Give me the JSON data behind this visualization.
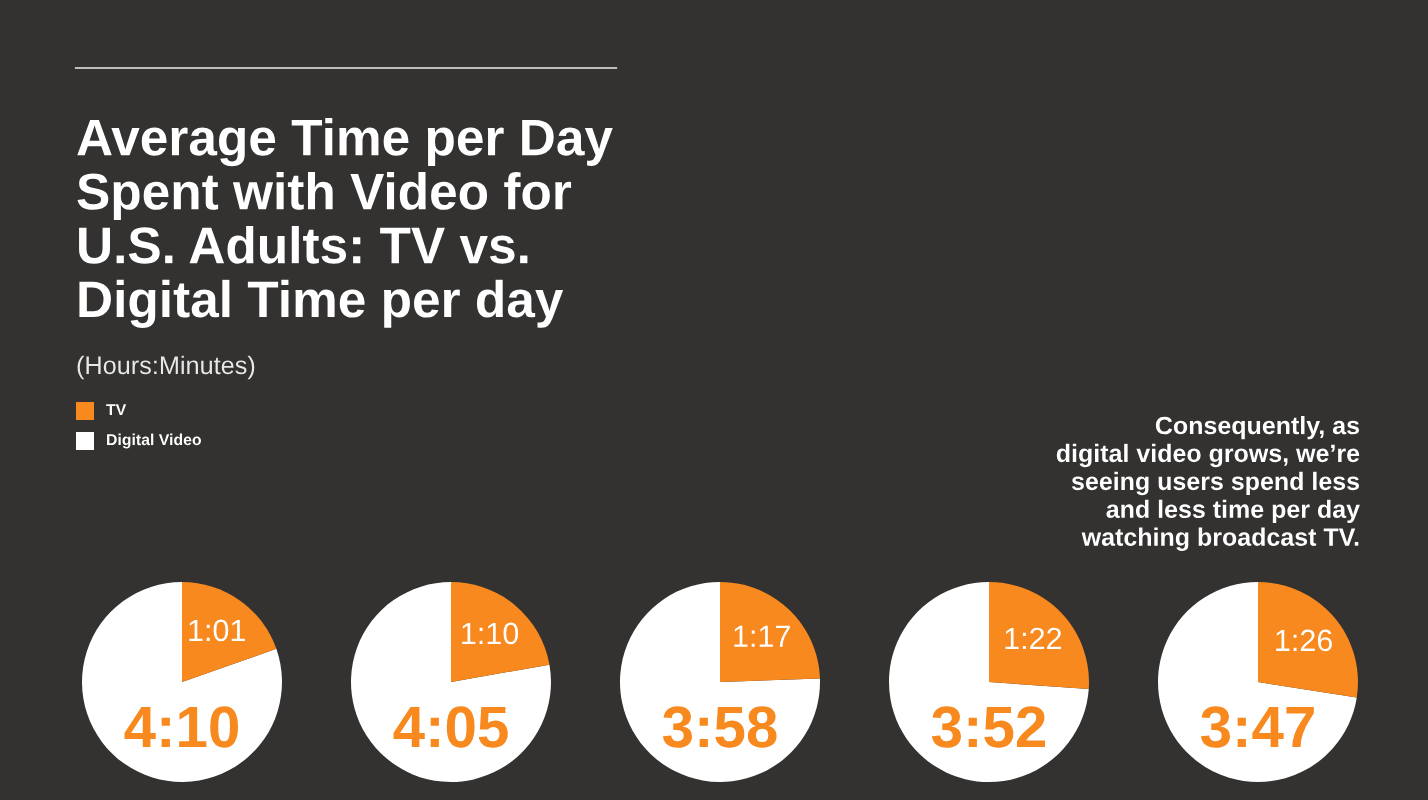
{
  "chart_data": [
    {
      "type": "other",
      "title": "Average Time per Day\nSpent with Video for\nU.S. Adults: TV vs.\nDigital Time per day",
      "subtitle": "(Hours:Minutes)",
      "categories": [
        "TV",
        "Digital Video"
      ],
      "colors": [
        "#f7891e",
        "#ffffff"
      ],
      "annotations": [
        "Consequently, as\ndigital video grows, we’re\nseeing users spend less\nand less time per day\nwatching broadcast TV."
      ]
    },
    {
      "type": "pie",
      "categories": [
        null,
        null
      ],
      "values": [
        250,
        61
      ],
      "colors": [
        "#ffffff",
        "#f7891e"
      ],
      "value_labels": [
        "4:10",
        "1:01"
      ]
    },
    {
      "type": "pie",
      "categories": [
        null,
        null
      ],
      "values": [
        245,
        70
      ],
      "colors": [
        "#ffffff",
        "#f7891e"
      ],
      "value_labels": [
        "4:05",
        "1:10"
      ]
    },
    {
      "type": "pie",
      "categories": [
        null,
        null
      ],
      "values": [
        238,
        77
      ],
      "colors": [
        "#ffffff",
        "#f7891e"
      ],
      "value_labels": [
        "3:58",
        "1:17"
      ]
    },
    {
      "type": "pie",
      "categories": [
        null,
        null
      ],
      "values": [
        232,
        82
      ],
      "colors": [
        "#ffffff",
        "#f7891e"
      ],
      "value_labels": [
        "3:52",
        "1:22"
      ]
    },
    {
      "type": "pie",
      "categories": [
        null,
        null
      ],
      "values": [
        227,
        86
      ],
      "colors": [
        "#ffffff",
        "#f7891e"
      ],
      "value_labels": [
        "3:47",
        "1:26"
      ]
    }
  ]
}
